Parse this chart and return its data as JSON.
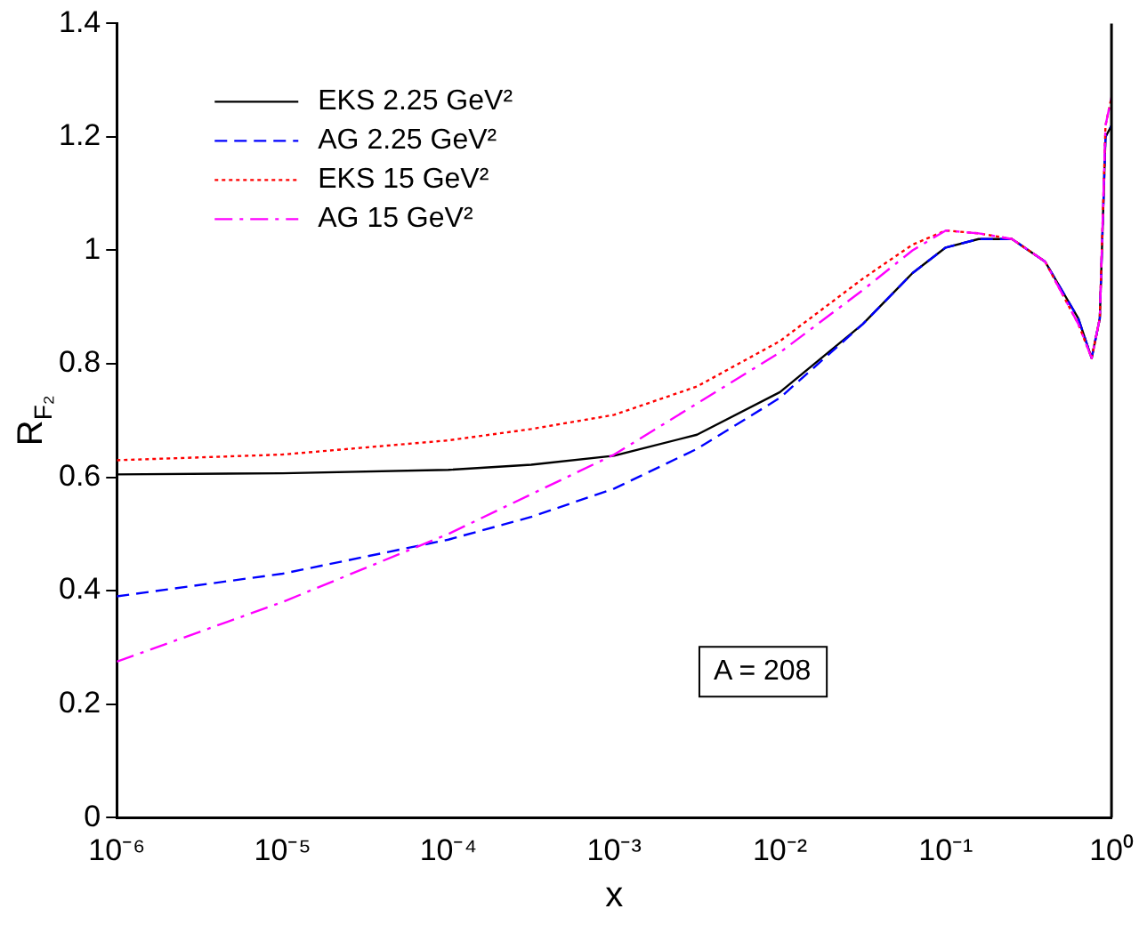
{
  "chart_data": {
    "type": "line",
    "xlabel": "x",
    "ylabel": "R$_{F₂}$",
    "log": "x",
    "x": [
      1e-06,
      1e-05,
      0.0001,
      0.000316,
      0.001,
      0.00316,
      0.01,
      0.0316,
      0.0631,
      0.1,
      0.158,
      0.251,
      0.398,
      0.631,
      0.759,
      0.85,
      0.92,
      1
    ],
    "series": [
      {
        "name": "EKS 2.25 GeV²",
        "color": "#000000",
        "line_style": "solid",
        "values": [
          0.605,
          0.607,
          0.613,
          0.622,
          0.638,
          0.675,
          0.75,
          0.87,
          0.96,
          1.005,
          1.02,
          1.02,
          0.98,
          0.88,
          0.81,
          0.88,
          1.2,
          1.22
        ]
      },
      {
        "name": "AG 2.25 GeV²",
        "color": "#0000ff",
        "line_style": "dashed",
        "values": [
          0.39,
          0.43,
          0.49,
          0.53,
          0.58,
          0.65,
          0.74,
          0.87,
          0.96,
          1.005,
          1.02,
          1.02,
          0.98,
          0.88,
          0.81,
          0.88,
          1.2,
          1.22
        ]
      },
      {
        "name": "EKS 15 GeV²",
        "color": "#ff0000",
        "line_style": "dotted",
        "values": [
          0.63,
          0.64,
          0.665,
          0.685,
          0.71,
          0.76,
          0.84,
          0.95,
          1.01,
          1.035,
          1.03,
          1.02,
          0.98,
          0.87,
          0.81,
          0.88,
          1.22,
          1.27
        ]
      },
      {
        "name": "AG 15 GeV²",
        "color": "#ff00ff",
        "line_style": "dashdot",
        "values": [
          0.275,
          0.38,
          0.5,
          0.57,
          0.64,
          0.73,
          0.82,
          0.93,
          1.0,
          1.035,
          1.03,
          1.02,
          0.98,
          0.87,
          0.81,
          0.88,
          1.22,
          1.27
        ]
      }
    ],
    "xlim": [
      1e-06,
      1
    ],
    "xticks": [
      {
        "value": 1e-06,
        "label": "10⁻⁶"
      },
      {
        "value": 1e-05,
        "label": "10⁻⁵"
      },
      {
        "value": 0.0001,
        "label": "10⁻⁴"
      },
      {
        "value": 0.001,
        "label": "10⁻³"
      },
      {
        "value": 0.01,
        "label": "10⁻²"
      },
      {
        "value": 0.1,
        "label": "10⁻¹"
      },
      {
        "value": 1,
        "label": "10⁰"
      }
    ],
    "ylim": [
      0,
      1.4
    ],
    "yticks": [
      0,
      0.2,
      0.4,
      0.6,
      0.8,
      1,
      1.2,
      1.4
    ],
    "legend": "top left",
    "annotations": [
      "A = 208"
    ]
  }
}
